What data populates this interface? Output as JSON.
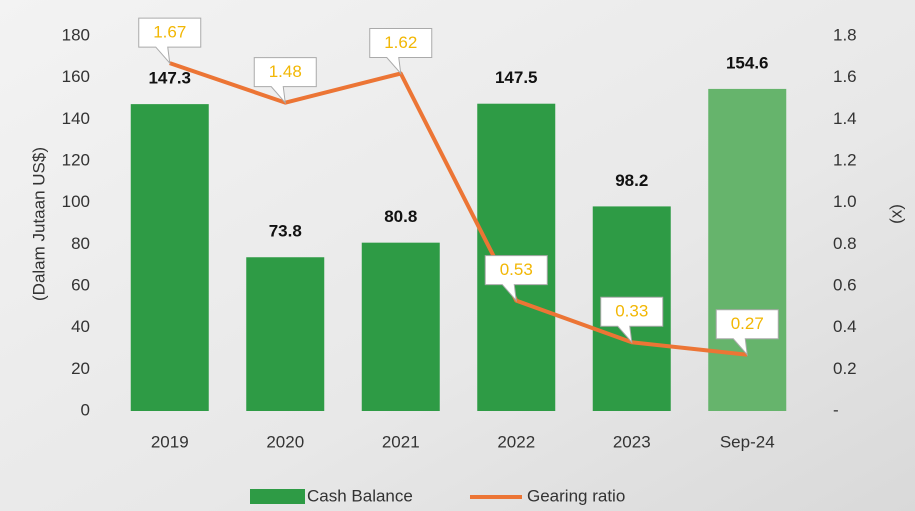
{
  "chart_data": {
    "type": "bar_line",
    "y_label": "(Dalam Jutaan US$)",
    "y2_label": "(x)",
    "categories": [
      "2019",
      "2020",
      "2021",
      "2022",
      "2023",
      "Sep-24"
    ],
    "series": [
      {
        "name": "Cash Balance",
        "type": "bar",
        "color": "#2e9b45",
        "point_colors": [
          "#2e9b45",
          "#2e9b45",
          "#2e9b45",
          "#2e9b45",
          "#2e9b45",
          "#66b46c"
        ],
        "values": [
          147.3,
          73.8,
          80.8,
          147.5,
          98.2,
          154.6
        ]
      },
      {
        "name": "Gearing ratio",
        "type": "line",
        "axis": "y2",
        "color": "#ec7535",
        "label_color": "#f2b705",
        "values": [
          1.67,
          1.48,
          1.62,
          0.53,
          0.33,
          0.27
        ]
      }
    ],
    "ylim": [
      0,
      180
    ],
    "yticks": [
      0,
      20,
      40,
      60,
      80,
      100,
      120,
      140,
      160,
      180
    ],
    "y2lim": [
      0,
      1.8
    ],
    "y2ticks": [
      {
        "value": 0,
        "label": "-"
      },
      0.2,
      0.4,
      0.6,
      0.8,
      {
        "value": 1,
        "label": "1.0"
      },
      1.2,
      1.4,
      1.6,
      1.8
    ],
    "grid": false,
    "legend": "bottom"
  }
}
